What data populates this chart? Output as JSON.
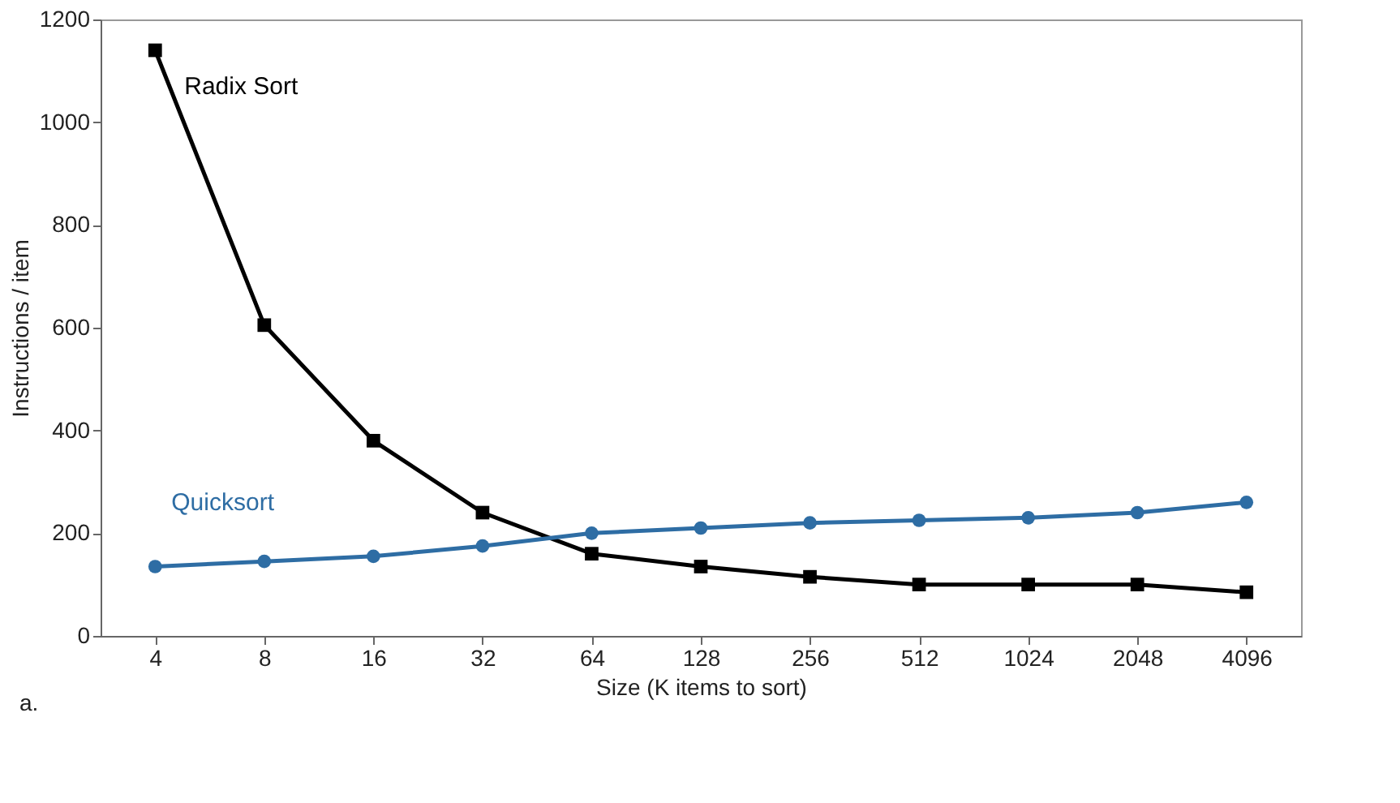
{
  "chart_data": {
    "type": "line",
    "xlabel": "Size (K items to sort)",
    "ylabel": "Instructions / item",
    "categories": [
      "4",
      "8",
      "16",
      "32",
      "64",
      "128",
      "256",
      "512",
      "1024",
      "2048",
      "4096"
    ],
    "series": [
      {
        "name": "Radix Sort",
        "color": "#000000",
        "marker": "square",
        "values": [
          1140,
          605,
          380,
          240,
          160,
          135,
          115,
          100,
          100,
          100,
          85
        ]
      },
      {
        "name": "Quicksort",
        "color": "#2e6da4",
        "marker": "circle",
        "values": [
          135,
          145,
          155,
          175,
          200,
          210,
          220,
          225,
          230,
          240,
          260
        ]
      }
    ],
    "ylim": [
      0,
      1200
    ],
    "yticks": [
      0,
      200,
      400,
      600,
      800,
      1000,
      1200
    ],
    "grid": false,
    "line_style": "solid",
    "annotations": [
      "a."
    ]
  }
}
